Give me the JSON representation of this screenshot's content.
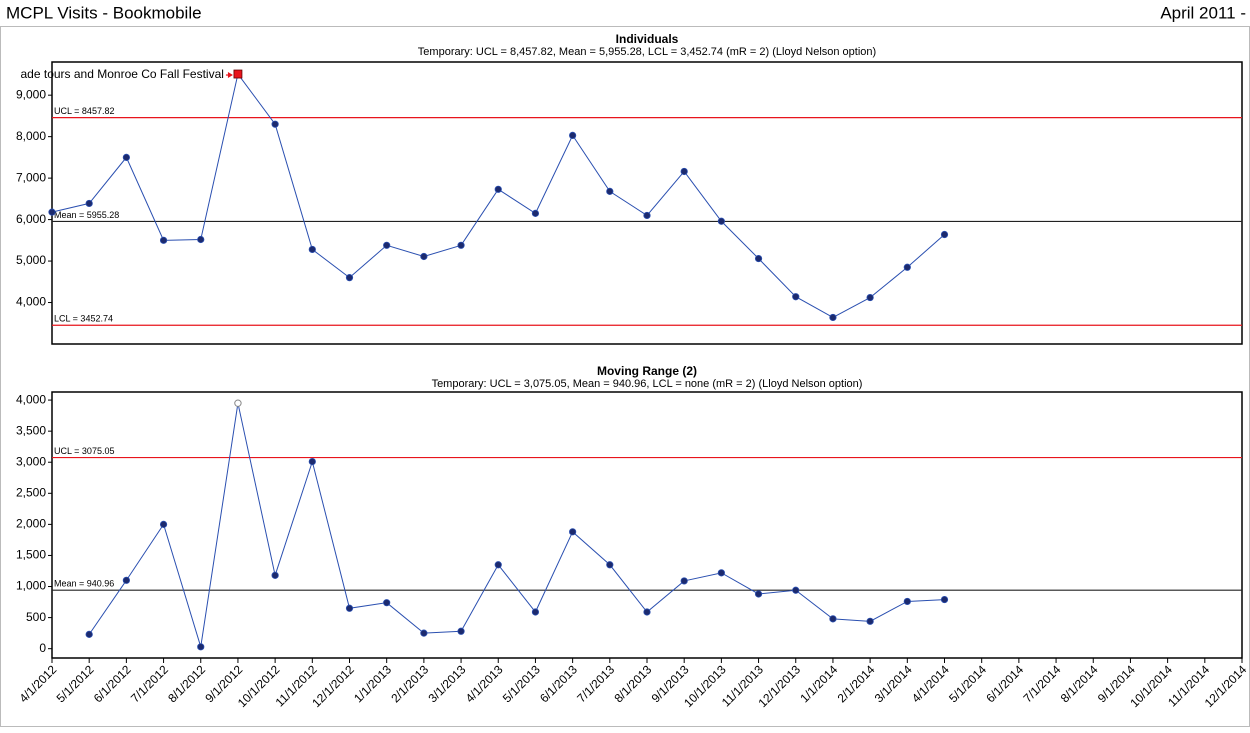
{
  "header": {
    "title": "MCPL Visits - Bookmobile",
    "period": "April 2011 -"
  },
  "chart_data": [
    {
      "type": "line",
      "title": "Individuals",
      "subtitle": "Temporary: UCL = 8,457.82, Mean = 5,955.28, LCL = 3,452.74 (mR = 2) (Lloyd Nelson option)",
      "values": [
        6180,
        6390,
        7500,
        5500,
        5520,
        9510,
        8300,
        5280,
        4600,
        5380,
        5110,
        5380,
        6730,
        6150,
        8030,
        6680,
        6100,
        7160,
        5960,
        5060,
        4140,
        3640,
        4120,
        4850,
        5640,
        null,
        null,
        null,
        null,
        null,
        null,
        null,
        null
      ],
      "color": "#2a4fb0",
      "marker_color": "#1c2a6e",
      "ylim": [
        3000,
        9800
      ],
      "yticks": [
        {
          "value": 4000,
          "label": "4,000"
        },
        {
          "value": 5000,
          "label": "5,000"
        },
        {
          "value": 6000,
          "label": "6,000"
        },
        {
          "value": 7000,
          "label": "7,000"
        },
        {
          "value": 8000,
          "label": "8,000"
        },
        {
          "value": 9000,
          "label": "9,000"
        }
      ],
      "control_lines": [
        {
          "label": "UCL = 8457.82",
          "value": 8457.82,
          "color": "#e8141c"
        },
        {
          "label": "Mean = 5955.28",
          "value": 5955.28,
          "color": "#222222",
          "label_color": "#1a2ad8"
        },
        {
          "label": "LCL = 3452.74",
          "value": 3452.74,
          "color": "#e8141c"
        }
      ],
      "special_points": [
        {
          "index": 5,
          "marker": "square",
          "color": "#e8141c",
          "annotation": "ade tours and Monroe Co Fall Festival"
        }
      ]
    },
    {
      "type": "line",
      "title": "Moving Range (2)",
      "subtitle": "Temporary: UCL = 3,075.05, Mean = 940.96, LCL = none (mR = 2) (Lloyd Nelson option)",
      "categories": [
        "4/1/2012",
        "5/1/2012",
        "6/1/2012",
        "7/1/2012",
        "8/1/2012",
        "9/1/2012",
        "10/1/2012",
        "11/1/2012",
        "12/1/2012",
        "1/1/2013",
        "2/1/2013",
        "3/1/2013",
        "4/1/2013",
        "5/1/2013",
        "6/1/2013",
        "7/1/2013",
        "8/1/2013",
        "9/1/2013",
        "10/1/2013",
        "11/1/2013",
        "12/1/2013",
        "1/1/2014",
        "2/1/2014",
        "3/1/2014",
        "4/1/2014",
        "5/1/2014",
        "6/1/2014",
        "7/1/2014",
        "8/1/2014",
        "9/1/2014",
        "10/1/2014",
        "11/1/2014",
        "12/1/2014"
      ],
      "values": [
        null,
        230,
        1100,
        2000,
        30,
        3950,
        1180,
        3010,
        650,
        740,
        250,
        280,
        1350,
        590,
        1880,
        1350,
        590,
        1090,
        1220,
        880,
        940,
        480,
        440,
        760,
        790,
        null,
        null,
        null,
        null,
        null,
        null,
        null,
        null
      ],
      "color": "#2a4fb0",
      "marker_color": "#1c2a6e",
      "ylim": [
        -150,
        4130
      ],
      "yticks": [
        0,
        500,
        {
          "value": 1000,
          "label": "1,000"
        },
        {
          "value": 1500,
          "label": "1,500"
        },
        {
          "value": 2000,
          "label": "2,000"
        },
        {
          "value": 2500,
          "label": "2,500"
        },
        {
          "value": 3000,
          "label": "3,000"
        },
        {
          "value": 3500,
          "label": "3,500"
        },
        {
          "value": 4000,
          "label": "4,000"
        }
      ],
      "control_lines": [
        {
          "label": "UCL = 3075.05",
          "value": 3075.05,
          "color": "#e8141c"
        },
        {
          "label": "Mean = 940.96",
          "value": 940.96,
          "color": "#222222",
          "label_color": "#1a2ad8"
        }
      ],
      "special_points": [
        {
          "index": 5,
          "marker": "open-circle",
          "color": "#888888"
        }
      ]
    }
  ]
}
